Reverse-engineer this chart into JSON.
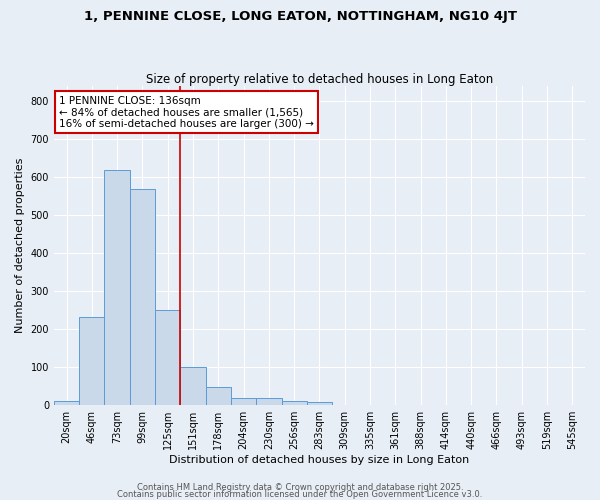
{
  "title1": "1, PENNINE CLOSE, LONG EATON, NOTTINGHAM, NG10 4JT",
  "title2": "Size of property relative to detached houses in Long Eaton",
  "xlabel": "Distribution of detached houses by size in Long Eaton",
  "ylabel": "Number of detached properties",
  "categories": [
    "20sqm",
    "46sqm",
    "73sqm",
    "99sqm",
    "125sqm",
    "151sqm",
    "178sqm",
    "204sqm",
    "230sqm",
    "256sqm",
    "283sqm",
    "309sqm",
    "335sqm",
    "361sqm",
    "388sqm",
    "414sqm",
    "440sqm",
    "466sqm",
    "493sqm",
    "519sqm",
    "545sqm"
  ],
  "values": [
    10,
    232,
    619,
    570,
    250,
    100,
    48,
    20,
    20,
    10,
    8,
    0,
    0,
    0,
    0,
    0,
    0,
    0,
    0,
    0,
    0
  ],
  "bar_color": "#c9d9ea",
  "bar_edge_color": "#5b9bd5",
  "bg_color": "#e8eef6",
  "grid_color": "#ffffff",
  "red_line_x": 4.5,
  "annotation_text": "1 PENNINE CLOSE: 136sqm\n← 84% of detached houses are smaller (1,565)\n16% of semi-detached houses are larger (300) →",
  "annotation_box_color": "#ffffff",
  "annotation_box_edge": "#cc0000",
  "red_line_color": "#cc0000",
  "ylim": [
    0,
    840
  ],
  "yticks": [
    0,
    100,
    200,
    300,
    400,
    500,
    600,
    700,
    800
  ],
  "footer1": "Contains HM Land Registry data © Crown copyright and database right 2025.",
  "footer2": "Contains public sector information licensed under the Open Government Licence v3.0.",
  "title1_fontsize": 9.5,
  "title2_fontsize": 8.5,
  "xlabel_fontsize": 8,
  "ylabel_fontsize": 8,
  "tick_fontsize": 7,
  "annotation_fontsize": 7.5,
  "footer_fontsize": 6
}
